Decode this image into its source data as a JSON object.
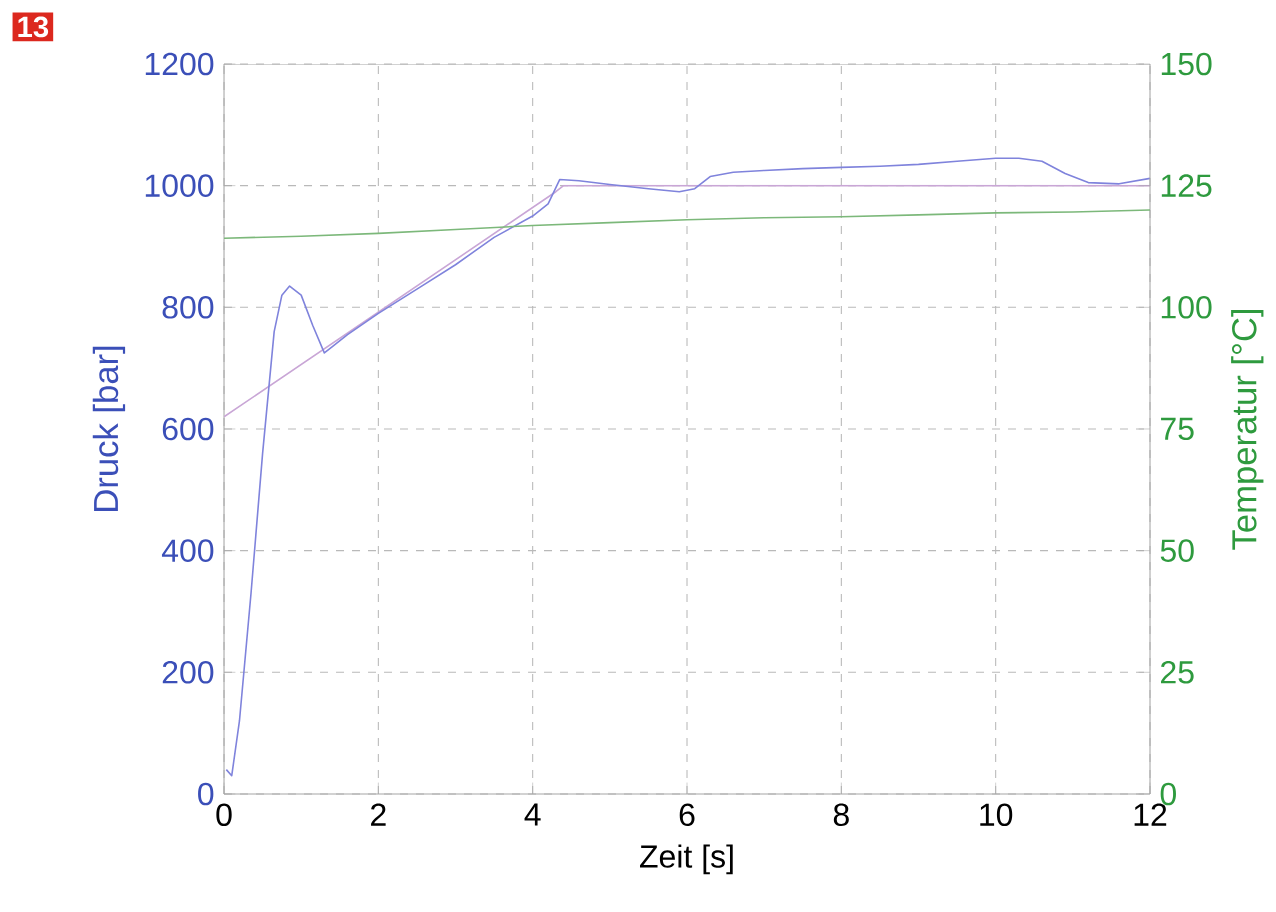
{
  "chart_data": {
    "type": "line",
    "xlabel": "Zeit [s]",
    "ylabel": "Druck [bar]",
    "y2label": "Temperatur [°C]",
    "annotations": [
      "13"
    ],
    "xlim": [
      0,
      12
    ],
    "xticks": [
      0,
      2,
      4,
      6,
      8,
      10,
      12
    ],
    "ylim": [
      0,
      1200
    ],
    "yticks": [
      0,
      200,
      400,
      600,
      800,
      1000,
      1200
    ],
    "y2lim": [
      0,
      150
    ],
    "y2ticks": [
      0,
      25,
      50,
      75,
      100,
      125,
      150
    ],
    "grid": true,
    "line_style": "solid",
    "series": [
      {
        "color": "#c9a6d6",
        "x": [
          0,
          4.3,
          4.4,
          12
        ],
        "values": [
          620,
          990,
          1000,
          1000
        ]
      },
      {
        "color": "#7f83dc",
        "x": [
          0.03,
          0.1,
          0.2,
          0.35,
          0.5,
          0.65,
          0.75,
          0.85,
          1.0,
          1.15,
          1.3,
          1.4,
          1.6,
          2.0,
          2.5,
          3.0,
          3.5,
          4.0,
          4.2,
          4.35,
          4.6,
          5.0,
          5.5,
          5.9,
          6.1,
          6.3,
          6.6,
          7.0,
          7.5,
          8.0,
          8.5,
          9.0,
          9.5,
          10.0,
          10.3,
          10.6,
          10.9,
          11.2,
          11.6,
          12.0
        ],
        "values": [
          40,
          30,
          120,
          330,
          560,
          760,
          820,
          835,
          820,
          770,
          725,
          735,
          755,
          790,
          830,
          870,
          915,
          950,
          970,
          1010,
          1008,
          1002,
          995,
          990,
          995,
          1015,
          1022,
          1025,
          1028,
          1030,
          1032,
          1035,
          1040,
          1045,
          1045,
          1040,
          1020,
          1005,
          1003,
          1012
        ]
      },
      {
        "color": "#7cb87a",
        "axis": "y2",
        "x": [
          0,
          1,
          2,
          3,
          4,
          5,
          6,
          7,
          8,
          9,
          10,
          11,
          12
        ],
        "values": [
          114.2,
          114.6,
          115.2,
          116,
          116.8,
          117.4,
          118,
          118.4,
          118.6,
          119,
          119.4,
          119.6,
          120
        ]
      }
    ]
  }
}
